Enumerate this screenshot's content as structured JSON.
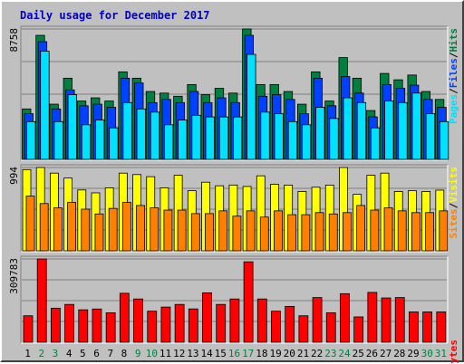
{
  "title": "Daily usage for December 2017",
  "colors": {
    "background": "#c0c0c0",
    "title": "#0000c0",
    "hits": "#008040",
    "files": "#0040ff",
    "pages": "#00e0ff",
    "visits": "#ffff00",
    "sites": "#ff8000",
    "kbytes": "#ff0000",
    "grid": "#808080",
    "weekend_day": "#008040",
    "weekday": "#000000"
  },
  "chart_data": [
    {
      "type": "bar",
      "panel": "hits-files-pages",
      "categories": [
        "1",
        "2",
        "3",
        "4",
        "5",
        "6",
        "7",
        "8",
        "9",
        "10",
        "11",
        "12",
        "13",
        "14",
        "15",
        "16",
        "17",
        "18",
        "19",
        "20",
        "21",
        "22",
        "23",
        "24",
        "25",
        "26",
        "27",
        "28",
        "29",
        "30",
        "31"
      ],
      "weekend_days": [
        "2",
        "3",
        "9",
        "10",
        "16",
        "17",
        "23",
        "24",
        "30",
        "31"
      ],
      "y_max_label": "8758",
      "ylim": [
        0,
        8758
      ],
      "legend": [
        "Pages",
        "Files",
        "Hits"
      ],
      "legend_separator": "/",
      "series": [
        {
          "name": "Hits",
          "values": [
            3387,
            8330,
            3707,
            5452,
            3920,
            4133,
            3920,
            5878,
            5452,
            4559,
            4453,
            4239,
            5026,
            4346,
            4772,
            4453,
            8758,
            5026,
            5026,
            4559,
            3707,
            5878,
            3920,
            6837,
            5452,
            3281,
            5772,
            5345,
            5665,
            4559,
            4026
          ]
        },
        {
          "name": "Files",
          "values": [
            3068,
            7905,
            3387,
            4666,
            3600,
            3707,
            3494,
            5452,
            5132,
            3813,
            4026,
            3813,
            4559,
            3813,
            4133,
            3813,
            8330,
            4239,
            4346,
            4026,
            3068,
            5452,
            3600,
            5559,
            4453,
            2855,
            5026,
            4772,
            4985,
            4026,
            3494
          ]
        },
        {
          "name": "Pages",
          "values": [
            2536,
            7265,
            2536,
            4346,
            2323,
            2641,
            2113,
            3813,
            3387,
            3174,
            2323,
            2641,
            2961,
            2851,
            2851,
            2851,
            7052,
            3174,
            3068,
            2536,
            2323,
            3494,
            2747,
            4133,
            3813,
            2113,
            3920,
            3813,
            4453,
            3068,
            2536
          ]
        }
      ]
    },
    {
      "type": "bar",
      "panel": "visits-sites",
      "categories": [
        "1",
        "2",
        "3",
        "4",
        "5",
        "6",
        "7",
        "8",
        "9",
        "10",
        "11",
        "12",
        "13",
        "14",
        "15",
        "16",
        "17",
        "18",
        "19",
        "20",
        "21",
        "22",
        "23",
        "24",
        "25",
        "26",
        "27",
        "28",
        "29",
        "30",
        "31"
      ],
      "y_max_label": "994",
      "ylim": [
        0,
        994
      ],
      "legend": [
        "Sites",
        "Visits"
      ],
      "legend_separator": "/",
      "series": [
        {
          "name": "Visits",
          "values": [
            969,
            994,
            927,
            868,
            726,
            692,
            751,
            927,
            910,
            885,
            751,
            901,
            717,
            819,
            776,
            785,
            768,
            895,
            793,
            784,
            708,
            759,
            784,
            994,
            674,
            901,
            927,
            708,
            717,
            708,
            724
          ]
        },
        {
          "name": "Sites",
          "values": [
            653,
            564,
            513,
            578,
            497,
            440,
            506,
            578,
            541,
            513,
            486,
            486,
            444,
            444,
            477,
            414,
            477,
            403,
            477,
            431,
            431,
            456,
            440,
            456,
            541,
            486,
            513,
            477,
            456,
            456,
            477
          ]
        }
      ]
    },
    {
      "type": "bar",
      "panel": "kbytes",
      "categories": [
        "1",
        "2",
        "3",
        "4",
        "5",
        "6",
        "7",
        "8",
        "9",
        "10",
        "11",
        "12",
        "13",
        "14",
        "15",
        "16",
        "17",
        "18",
        "19",
        "20",
        "21",
        "22",
        "23",
        "24",
        "25",
        "26",
        "27",
        "28",
        "29",
        "30",
        "31"
      ],
      "y_max_label": "309783",
      "ylim": [
        0,
        309783
      ],
      "legend": [
        "KBytes"
      ],
      "series": [
        {
          "name": "KBytes",
          "values": [
            98567,
            309783,
            126730,
            140811,
            120740,
            123738,
            109659,
            182307,
            161012,
            115654,
            130953,
            140811,
            124092,
            183892,
            140811,
            161012,
            299220,
            161012,
            115654,
            133420,
            98567,
            166293,
            109659,
            180717,
            94342,
            185476,
            164841,
            166293,
            112831,
            112831,
            112831
          ]
        }
      ]
    }
  ]
}
